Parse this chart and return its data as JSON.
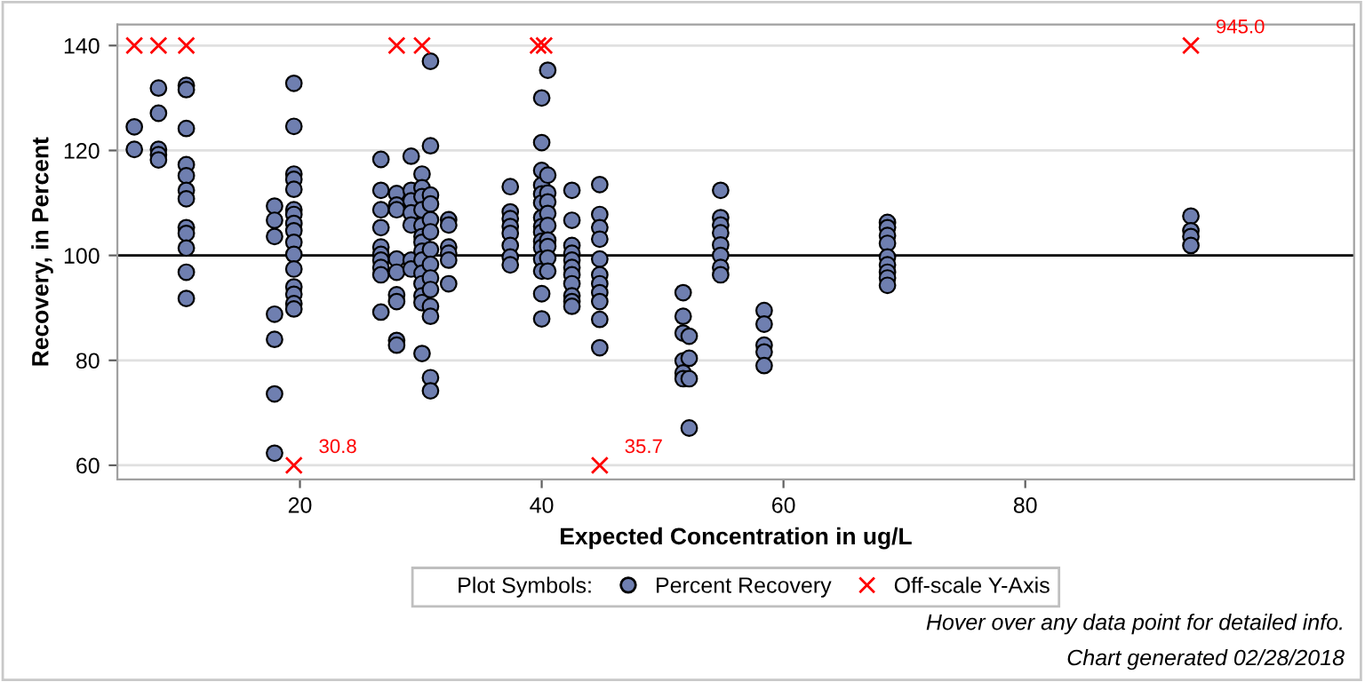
{
  "chart_data": {
    "type": "scatter",
    "xlabel": "Expected Concentration in ug/L",
    "ylabel": "Recovery, in Percent",
    "legend_title": "Plot Symbols:",
    "xlim": [
      4.9,
      107.2
    ],
    "ylim": [
      57.3,
      144
    ],
    "xticks": [
      20,
      40,
      60,
      80
    ],
    "yticks": [
      60,
      80,
      100,
      120,
      140
    ],
    "grid": "y",
    "legend": "bottom",
    "ref_lines": [
      {
        "axis": "y",
        "value": 100,
        "color": "#000000",
        "line_style": "solid"
      }
    ],
    "series": [
      {
        "name": "Percent Recovery",
        "color": "#6f7fb0",
        "marker": "circle",
        "x": [
          6.3,
          6.3,
          8.3,
          8.3,
          8.3,
          8.3,
          8.3,
          10.6,
          10.6,
          10.6,
          10.6,
          10.6,
          10.6,
          10.6,
          10.6,
          10.6,
          10.6,
          10.6,
          10.6,
          17.9,
          17.9,
          17.9,
          17.9,
          17.9,
          17.9,
          17.9,
          19.5,
          19.5,
          19.5,
          19.5,
          19.5,
          19.5,
          19.5,
          19.5,
          19.5,
          19.5,
          19.5,
          19.5,
          19.5,
          19.5,
          19.5,
          19.5,
          26.7,
          26.7,
          26.7,
          26.7,
          26.7,
          26.7,
          26.7,
          26.7,
          26.7,
          26.7,
          28.0,
          28.0,
          28.0,
          28.0,
          28.0,
          28.0,
          28.0,
          28.0,
          28.0,
          29.2,
          29.2,
          29.2,
          29.2,
          29.2,
          29.2,
          29.2,
          30.1,
          30.1,
          30.1,
          30.1,
          30.1,
          30.1,
          30.1,
          30.1,
          30.1,
          30.1,
          30.1,
          30.1,
          30.1,
          30.1,
          30.8,
          30.8,
          30.8,
          30.8,
          30.8,
          30.8,
          30.8,
          30.8,
          30.8,
          30.8,
          30.8,
          30.8,
          30.8,
          30.8,
          32.3,
          32.3,
          32.3,
          32.3,
          32.3,
          32.3,
          37.4,
          37.4,
          37.4,
          37.4,
          37.4,
          37.4,
          37.4,
          37.4,
          40.0,
          40.0,
          40.0,
          40.0,
          40.0,
          40.0,
          40.0,
          40.0,
          40.0,
          40.0,
          40.0,
          40.0,
          40.0,
          40.0,
          40.0,
          40.5,
          40.5,
          40.5,
          40.5,
          40.5,
          40.5,
          40.5,
          40.5,
          40.5,
          40.5,
          42.5,
          42.5,
          42.5,
          42.5,
          42.5,
          42.5,
          42.5,
          42.5,
          42.5,
          42.5,
          42.5,
          44.8,
          44.8,
          44.8,
          44.8,
          44.8,
          44.8,
          44.8,
          44.8,
          44.8,
          44.8,
          44.8,
          51.7,
          51.7,
          51.7,
          51.7,
          51.7,
          51.7,
          52.2,
          52.2,
          52.2,
          52.2,
          54.8,
          54.8,
          54.8,
          54.8,
          54.8,
          54.8,
          54.8,
          54.8,
          58.4,
          58.4,
          58.4,
          58.4,
          58.4,
          68.6,
          68.6,
          68.6,
          68.6,
          68.6,
          68.6,
          68.6,
          68.6,
          68.6,
          93.7,
          93.7,
          93.7,
          93.7
        ],
        "values": [
          124.5,
          120.2,
          131.9,
          127.1,
          120.2,
          119.2,
          118.2,
          132.4,
          131.6,
          124.2,
          117.3,
          115.2,
          112.4,
          110.8,
          105.3,
          104.2,
          101.4,
          96.8,
          91.8,
          109.4,
          106.7,
          103.6,
          88.8,
          84.0,
          73.6,
          62.3,
          132.8,
          124.6,
          115.5,
          114.5,
          112.6,
          108.7,
          107.8,
          106.1,
          104.7,
          102.5,
          100.2,
          97.4,
          94.0,
          92.6,
          90.8,
          89.8,
          118.3,
          112.4,
          108.7,
          105.3,
          101.6,
          100.2,
          99.1,
          97.7,
          96.3,
          89.2,
          111.8,
          109.6,
          108.7,
          99.3,
          96.8,
          92.5,
          91.2,
          83.8,
          82.9,
          118.9,
          112.4,
          110.4,
          108.1,
          105.8,
          99.1,
          97.4,
          115.5,
          112.9,
          111.2,
          108.7,
          105.7,
          103.6,
          102.5,
          100.8,
          99.1,
          96.6,
          94.6,
          92.3,
          91.0,
          81.3,
          137.0,
          120.9,
          111.5,
          109.8,
          106.8,
          104.5,
          101.1,
          98.3,
          95.7,
          93.5,
          90.3,
          88.4,
          76.7,
          74.2,
          106.8,
          105.8,
          101.6,
          100.4,
          99.1,
          94.6,
          113.1,
          108.3,
          107.0,
          105.5,
          104.2,
          101.9,
          99.7,
          98.2,
          130.0,
          121.5,
          116.2,
          113.4,
          111.7,
          110.0,
          107.2,
          105.5,
          104.4,
          102.7,
          101.5,
          99.3,
          97.0,
          92.7,
          87.9,
          135.3,
          115.3,
          111.9,
          110.2,
          108.0,
          105.7,
          102.9,
          101.7,
          99.5,
          97.0,
          112.4,
          106.7,
          101.9,
          100.4,
          99.1,
          97.7,
          96.3,
          94.6,
          92.3,
          91.2,
          90.3,
          113.5,
          107.8,
          105.3,
          103.1,
          99.3,
          96.3,
          94.6,
          92.9,
          91.2,
          87.8,
          82.4,
          92.9,
          88.4,
          85.2,
          79.9,
          77.6,
          76.5,
          84.6,
          80.4,
          76.5,
          67.1,
          112.4,
          107.2,
          105.8,
          104.3,
          102.0,
          100.0,
          97.7,
          96.3,
          89.5,
          86.9,
          82.9,
          81.6,
          79.0,
          106.3,
          105.3,
          103.8,
          102.3,
          99.7,
          98.2,
          96.8,
          95.7,
          94.3,
          107.5,
          104.7,
          103.6,
          101.9
        ]
      },
      {
        "name": "Off-scale Y-Axis",
        "color": "#ff0000",
        "marker": "cross",
        "x": [
          6.3,
          8.3,
          10.6,
          28.0,
          30.1,
          39.7,
          40.2,
          93.7,
          19.5,
          44.8
        ],
        "values": [
          140,
          140,
          140,
          140,
          140,
          140,
          140,
          140,
          60,
          60
        ]
      }
    ],
    "annotations": [
      {
        "text": "945.0",
        "x": 93.7,
        "y": 140
      },
      {
        "text": "30.8",
        "x": 19.5,
        "y": 60
      },
      {
        "text": "35.7",
        "x": 44.8,
        "y": 60
      },
      "Hover over any data point for detailed info.",
      "Chart generated 02/28/2018"
    ]
  }
}
